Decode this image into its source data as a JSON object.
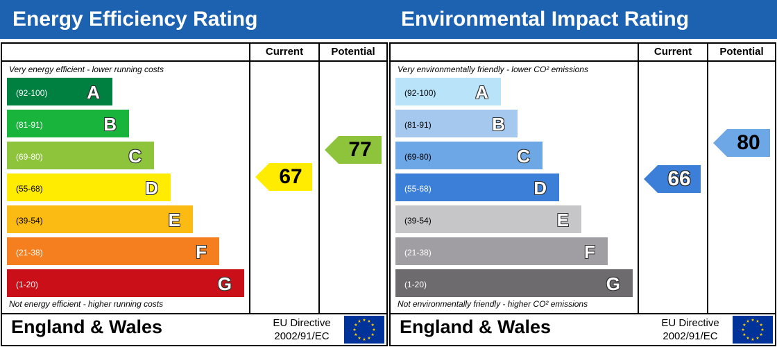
{
  "chart_data": [
    {
      "type": "bar",
      "title": "Energy Efficiency Rating",
      "columns": [
        "Current",
        "Potential"
      ],
      "top_note": "Very energy efficient - lower running costs",
      "bottom_note": "Not energy efficient - higher running costs",
      "bands": [
        {
          "letter": "A",
          "range": "(92-100)",
          "color": "#008040"
        },
        {
          "letter": "B",
          "range": "(81-91)",
          "color": "#19b43c"
        },
        {
          "letter": "C",
          "range": "(69-80)",
          "color": "#8dc43b"
        },
        {
          "letter": "D",
          "range": "(55-68)",
          "color": "#ffec00"
        },
        {
          "letter": "E",
          "range": "(39-54)",
          "color": "#fbbb12"
        },
        {
          "letter": "F",
          "range": "(21-38)",
          "color": "#f57e1f"
        },
        {
          "letter": "G",
          "range": "(1-20)",
          "color": "#cb0f18"
        }
      ],
      "current": {
        "value": 67,
        "band": "D",
        "color": "#ffec00"
      },
      "potential": {
        "value": 77,
        "band": "C",
        "color": "#8dc43b"
      },
      "footer_title": "England & Wales",
      "directive": [
        "EU Directive",
        "2002/91/EC"
      ]
    },
    {
      "type": "bar",
      "title": "Environmental Impact Rating",
      "columns": [
        "Current",
        "Potential"
      ],
      "top_note": "Very environmentally friendly - lower CO² emissions",
      "bottom_note": "Not environmentally friendly - higher CO² emissions",
      "bands": [
        {
          "letter": "A",
          "range": "(92-100)",
          "color": "#b8e3f9"
        },
        {
          "letter": "B",
          "range": "(81-91)",
          "color": "#a5c8ee"
        },
        {
          "letter": "C",
          "range": "(69-80)",
          "color": "#6ea7e6"
        },
        {
          "letter": "D",
          "range": "(55-68)",
          "color": "#3c7fd8"
        },
        {
          "letter": "E",
          "range": "(39-54)",
          "color": "#c6c5c7"
        },
        {
          "letter": "F",
          "range": "(21-38)",
          "color": "#a09ea2"
        },
        {
          "letter": "G",
          "range": "(1-20)",
          "color": "#6d6b6e"
        }
      ],
      "current": {
        "value": 66,
        "band": "D",
        "color": "#3c7fd8"
      },
      "potential": {
        "value": 80,
        "band": "C",
        "color": "#6ea7e6"
      },
      "footer_title": "England & Wales",
      "directive": [
        "EU Directive",
        "2002/91/EC"
      ]
    }
  ],
  "icons": {
    "eu_flag": "eu-flag-icon"
  }
}
